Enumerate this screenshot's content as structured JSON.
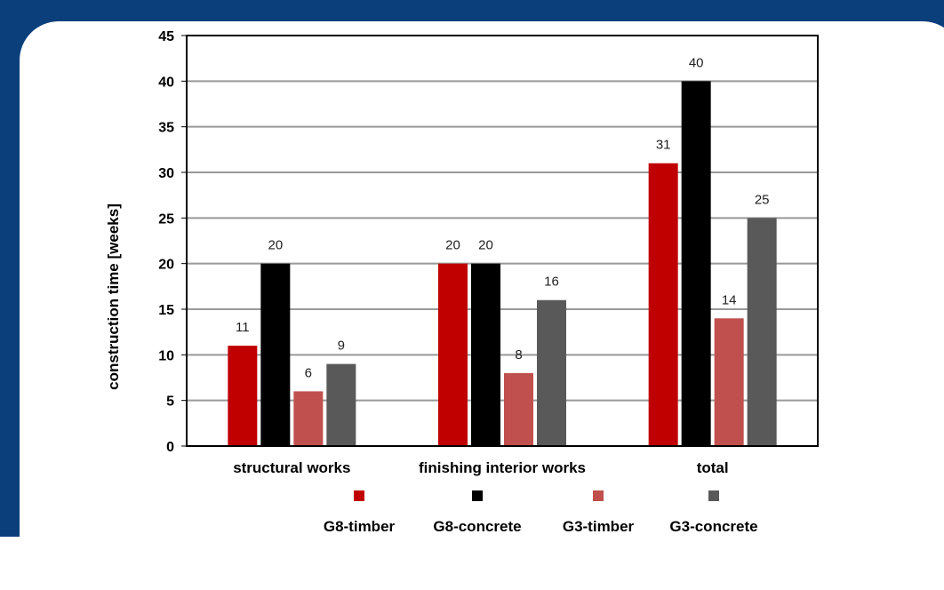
{
  "chart_data": {
    "type": "bar",
    "ylabel": "construction time [weeks]",
    "xlabel": "",
    "ylim": [
      0,
      45
    ],
    "yticks": [
      0,
      5,
      10,
      15,
      20,
      25,
      30,
      35,
      40,
      45
    ],
    "grid": true,
    "legend_position": "bottom",
    "categories": [
      "structural works",
      "finishing interior works",
      "total"
    ],
    "series": [
      {
        "name": "G8-timber",
        "color": "#c00000",
        "values": [
          11,
          20,
          31
        ]
      },
      {
        "name": "G8-concrete",
        "color": "#000000",
        "values": [
          20,
          20,
          40
        ]
      },
      {
        "name": "G3-timber",
        "color": "#c0504d",
        "values": [
          6,
          8,
          14
        ]
      },
      {
        "name": "G3-concrete",
        "color": "#595959",
        "values": [
          9,
          16,
          25
        ]
      }
    ]
  },
  "colors": {
    "frame": "#0b3f7c",
    "background": "#ffffff",
    "grid": "#999999"
  }
}
